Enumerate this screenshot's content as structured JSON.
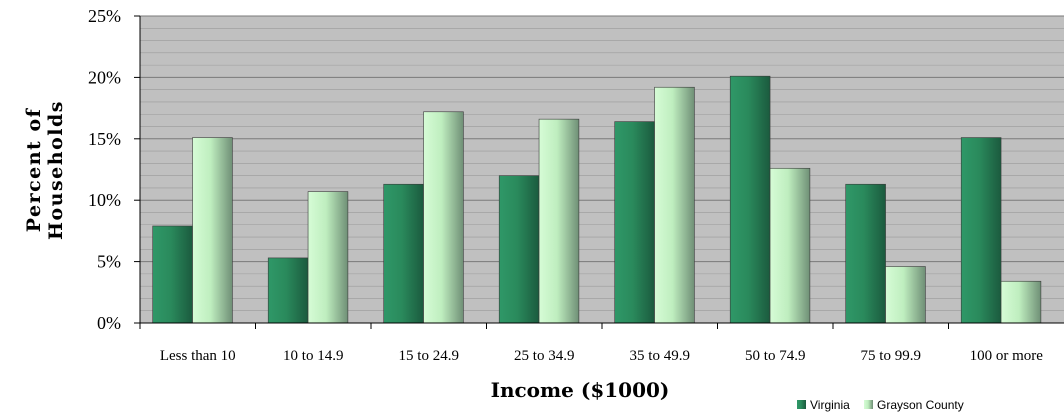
{
  "chart_data": {
    "type": "bar",
    "title": "",
    "xlabel": "Income ($1000)",
    "ylabel": "Percent of Households",
    "ylabel_lines": [
      "Percent of",
      "Households"
    ],
    "ylim": [
      0,
      25
    ],
    "y_ticks": [
      {
        "value": 0,
        "label": "0%"
      },
      {
        "value": 5,
        "label": "5%"
      },
      {
        "value": 10,
        "label": "10%"
      },
      {
        "value": 15,
        "label": "15%"
      },
      {
        "value": 20,
        "label": "20%"
      },
      {
        "value": 25,
        "label": "25%"
      }
    ],
    "minor_gridlines": true,
    "categories": [
      "Less than 10",
      "10 to 14.9",
      "15 to 24.9",
      "25 to 34.9",
      "35 to 49.9",
      "50 to 74.9",
      "75 to 99.9",
      "100 or more"
    ],
    "series": [
      {
        "name": "Virginia",
        "values": [
          7.9,
          5.3,
          11.3,
          12.0,
          16.4,
          20.1,
          11.3,
          15.1
        ]
      },
      {
        "name": "Grayson County",
        "values": [
          15.1,
          10.7,
          17.2,
          16.6,
          19.2,
          12.6,
          4.6,
          3.4
        ]
      }
    ],
    "legend_position": "bottom-right",
    "colors": {
      "plot_background": "#c0c0c0",
      "gridline": "#8a8a8a",
      "virginia": "#2a8a5a",
      "grayson": "#ccf6cc"
    }
  }
}
